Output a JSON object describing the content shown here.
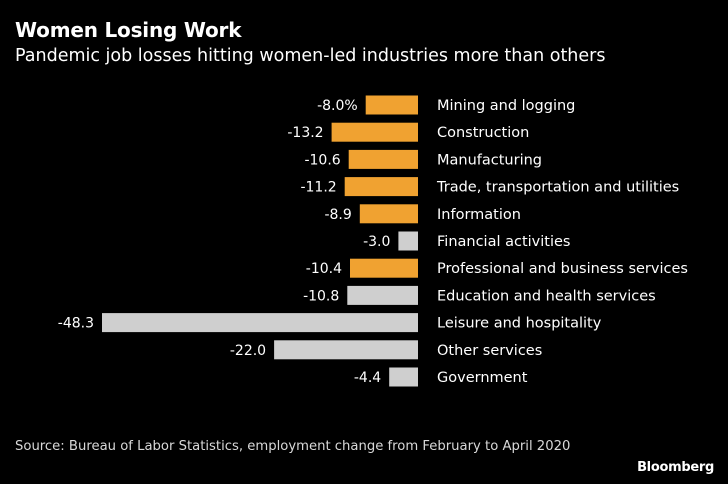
{
  "header": {
    "title": "Women Losing Work",
    "subtitle": "Pandemic job losses hitting women-led industries more than others"
  },
  "footer": {
    "source": "Source: Bureau of Labor Statistics, employment change from February to April 2020",
    "brand": "Bloomberg"
  },
  "colors": {
    "background": "#000000",
    "women_led": "#f0a231",
    "other": "#cfcfcf",
    "text": "#ffffff"
  },
  "chart_data": {
    "type": "bar",
    "orientation": "horizontal",
    "title": "Women Losing Work",
    "subtitle": "Pandemic job losses hitting women-led industries more than others",
    "xlabel": "",
    "ylabel": "",
    "xlim": [
      -48.3,
      0
    ],
    "grid": false,
    "categories": [
      "Mining and logging",
      "Construction",
      "Manufacturing",
      "Trade, transportation and utilities",
      "Information",
      "Financial activities",
      "Professional and business services",
      "Education and health services",
      "Leisure and hospitality",
      "Other services",
      "Government"
    ],
    "values": [
      -8.0,
      -13.2,
      -10.6,
      -11.2,
      -8.9,
      -3.0,
      -10.4,
      -10.8,
      -48.3,
      -22.0,
      -4.4
    ],
    "value_labels": [
      "-8.0%",
      "-13.2",
      "-10.6",
      "-11.2",
      "-8.9",
      "-3.0",
      "-10.4",
      "-10.8",
      "-48.3",
      "-22.0",
      "-4.4"
    ],
    "highlight": [
      true,
      true,
      true,
      true,
      true,
      false,
      true,
      false,
      false,
      false,
      false
    ],
    "unit": "%"
  }
}
